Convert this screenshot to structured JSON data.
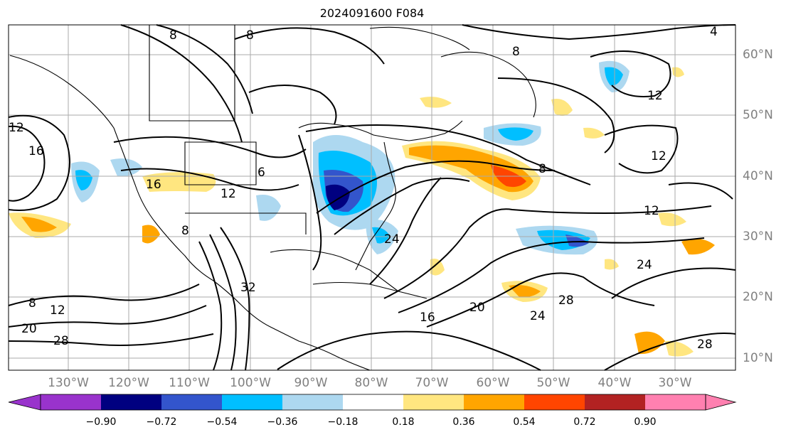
{
  "title": "2024091600 F084",
  "longitude_labels": [
    "130°W",
    "120°W",
    "110°W",
    "100°W",
    "90°W",
    "80°W",
    "70°W",
    "60°W",
    "50°W",
    "40°W",
    "30°W"
  ],
  "latitude_labels": [
    "60°N",
    "50°N",
    "40°N",
    "30°N",
    "20°N",
    "10°N"
  ],
  "colorbar": {
    "ticks": [
      "−0.90",
      "−0.72",
      "−0.54",
      "−0.36",
      "−0.18",
      "0.18",
      "0.36",
      "0.54",
      "0.72",
      "0.90"
    ],
    "colors": [
      "#9933cc",
      "#000080",
      "#3355cc",
      "#00bfff",
      "#add8f0",
      "#ffffff",
      "#ffe680",
      "#ffa500",
      "#ff4500",
      "#b22222",
      "#ff80b0"
    ]
  },
  "contour_labels": [
    "8",
    "8",
    "4",
    "8",
    "12",
    "12",
    "16",
    "16",
    "12",
    "8",
    "6",
    "12",
    "8",
    "12",
    "24",
    "24",
    "28",
    "20",
    "24",
    "16",
    "20",
    "12",
    "8",
    "28",
    "28",
    "32"
  ],
  "colors": {
    "contour": "#000000",
    "border": "#000000",
    "grid": "#aaaaaa",
    "axis_label": "#808080"
  }
}
